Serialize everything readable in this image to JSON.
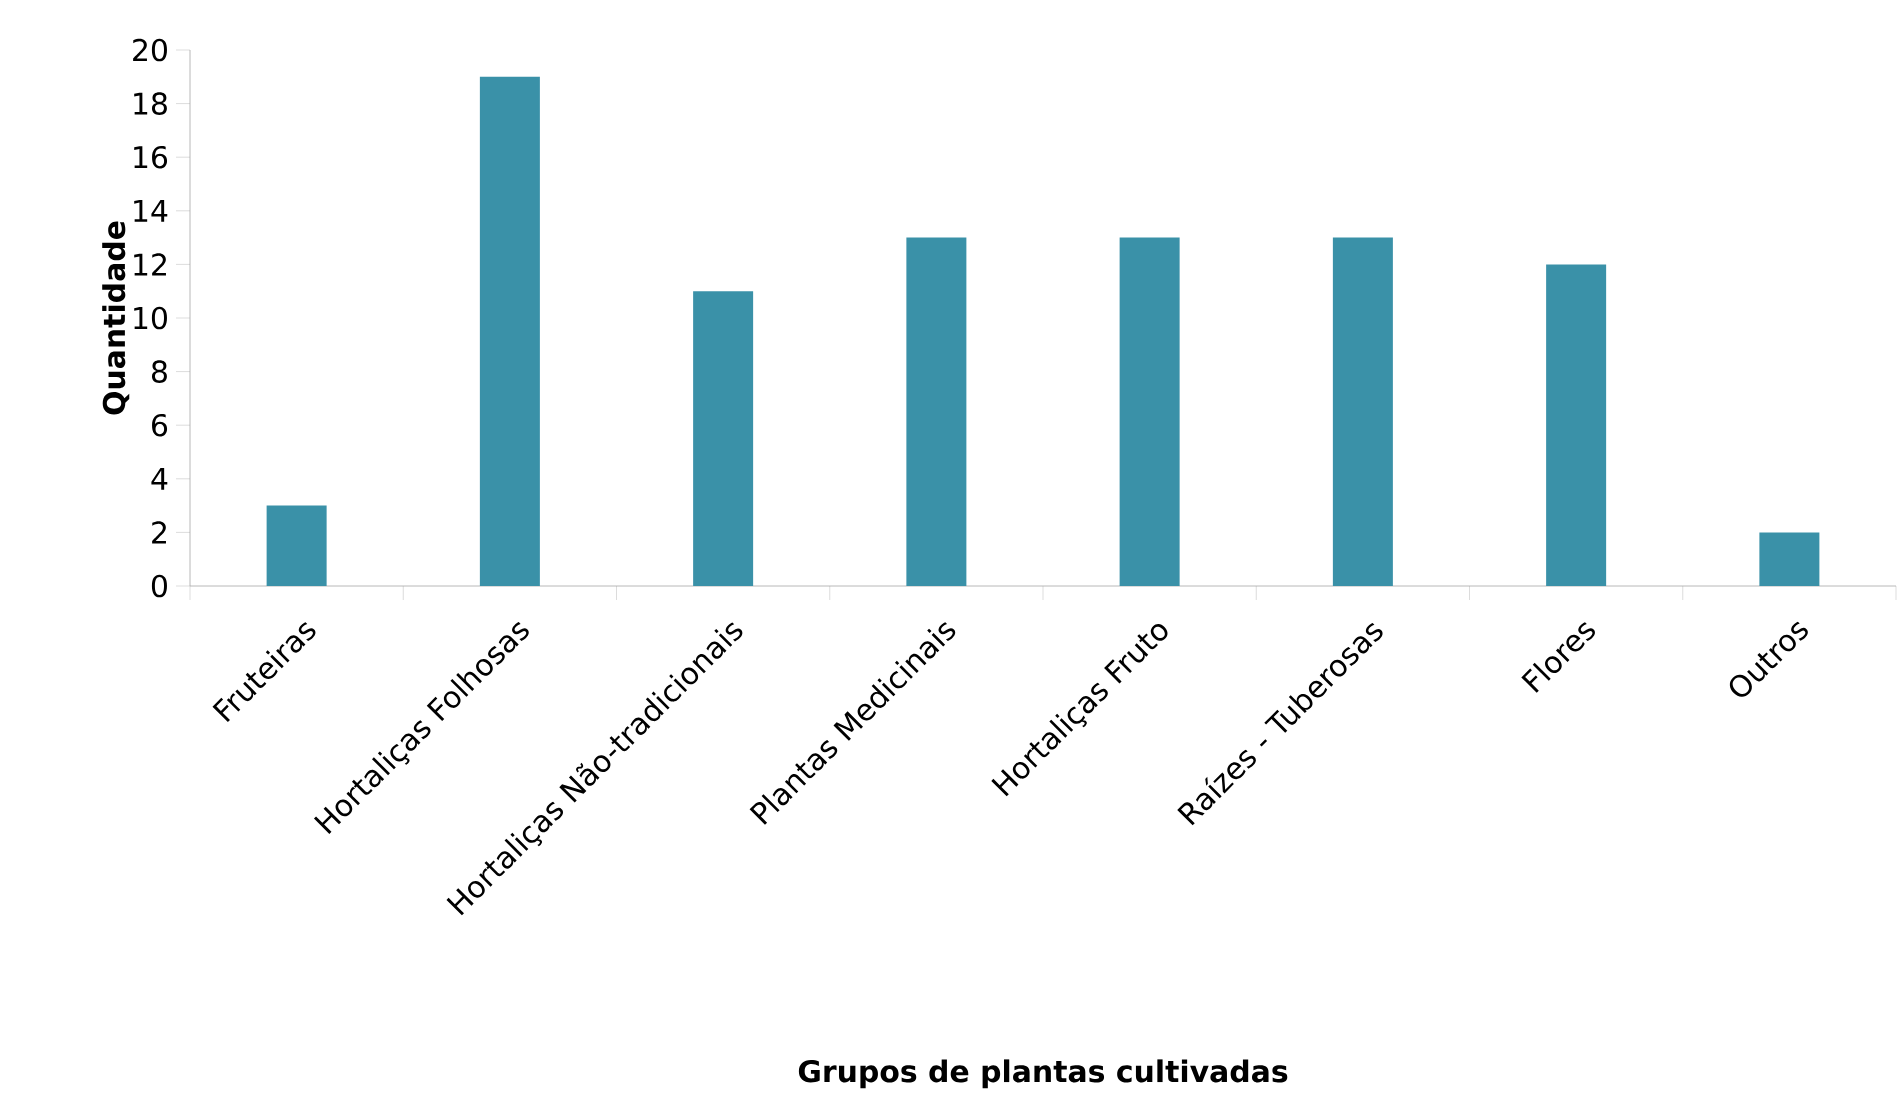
{
  "chart_data": {
    "type": "bar",
    "xlabel": "Grupos de plantas cultivadas",
    "ylabel": "Quantidade",
    "categories": [
      "Fruteiras",
      "Hortaliças Folhosas",
      "Hortaliças Não-tradicionais",
      "Plantas Medicinais",
      "Hortaliças Fruto",
      "Raízes - Tuberosas",
      "Flores",
      "Outros"
    ],
    "values": [
      3,
      19,
      11,
      13,
      13,
      13,
      12,
      2
    ],
    "color": "#3a91a8",
    "ylim": [
      0,
      20
    ],
    "yticks": [
      0,
      2,
      4,
      6,
      8,
      10,
      12,
      14,
      16,
      18,
      20
    ]
  }
}
